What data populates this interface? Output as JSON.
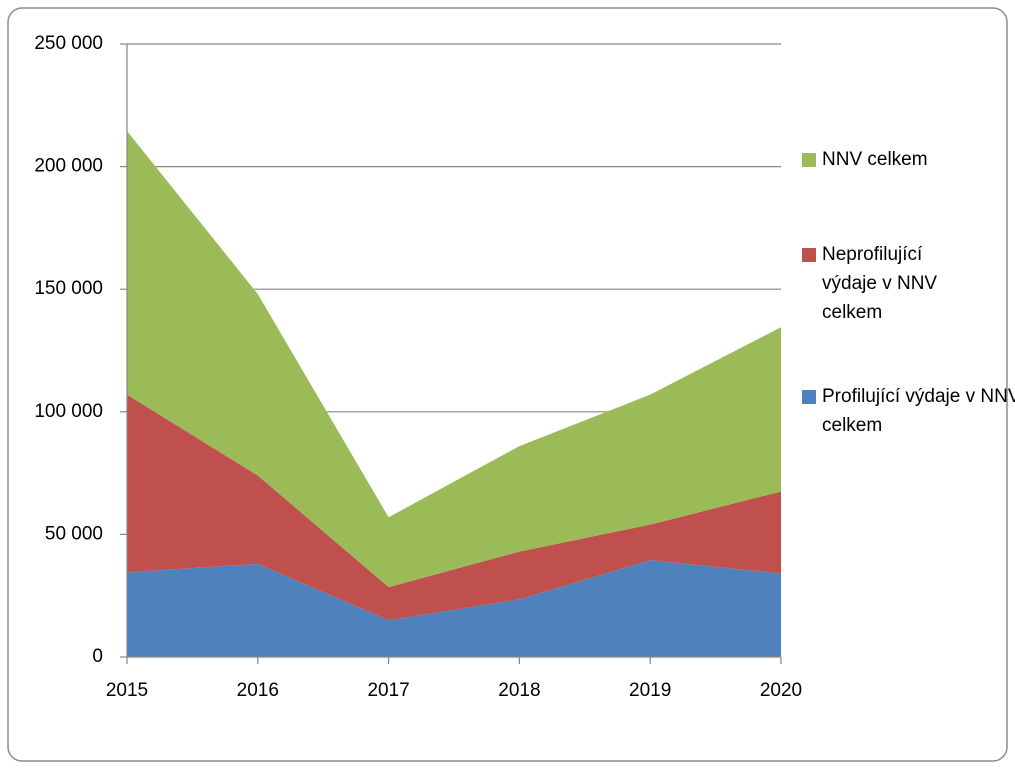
{
  "chart_data": {
    "type": "area",
    "categories": [
      "2015",
      "2016",
      "2017",
      "2018",
      "2019",
      "2020"
    ],
    "series": [
      {
        "name": "Profilující výdaje v NNV celkem",
        "color": "#4f81bd",
        "values": [
          34500,
          38000,
          15000,
          23500,
          39500,
          34000
        ]
      },
      {
        "name": "Neprofilující výdaje v NNV celkem",
        "color": "#c0504d",
        "values": [
          72500,
          36000,
          13500,
          19500,
          14500,
          33500
        ]
      },
      {
        "name": "NNV celkem",
        "color": "#9bbb59",
        "values": [
          107500,
          74000,
          28500,
          43000,
          53000,
          67000
        ]
      }
    ],
    "stacked": true,
    "ylim": [
      0,
      250000
    ],
    "yticks": [
      0,
      {
        "value": 50000,
        "label": "50 000"
      },
      {
        "value": 100000,
        "label": "100 000"
      },
      {
        "value": 150000,
        "label": "150 000"
      },
      {
        "value": 200000,
        "label": "200 000"
      },
      {
        "value": 250000,
        "label": "250 000"
      }
    ],
    "grid": true,
    "legend": "right"
  }
}
